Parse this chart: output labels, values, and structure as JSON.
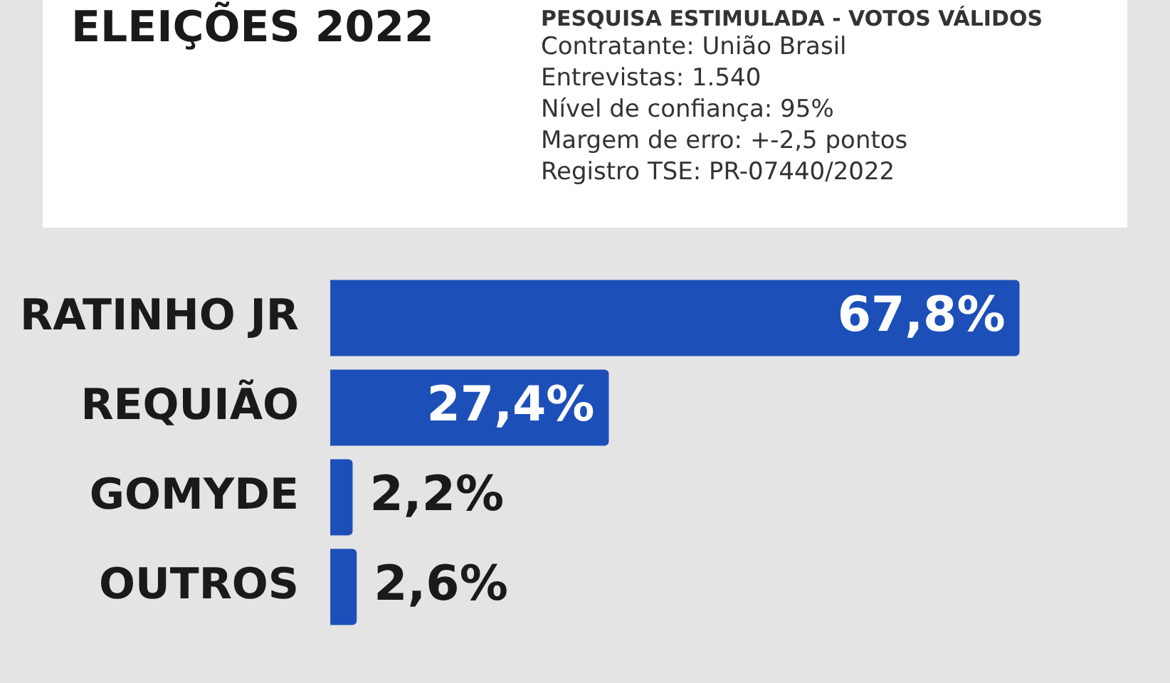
{
  "chart_data": {
    "type": "bar",
    "orientation": "horizontal",
    "title": "ELEIÇÕES 2022",
    "subtitle": "PESQUISA ESTIMULADA - VOTOS VÁLIDOS",
    "annotations": [
      "Contratante: União Brasil",
      "Entrevistas: 1.540",
      "Nível de confiança: 95%",
      "Margem de erro: +-2,5 pontos",
      "Registro TSE: PR-07440/2022"
    ],
    "categories": [
      "RATINHO JR",
      "REQUIÃO",
      "GOMYDE",
      "OUTROS"
    ],
    "values": [
      67.8,
      27.4,
      2.2,
      2.6
    ],
    "value_labels": [
      "67,8%",
      "27,4%",
      "2,2%",
      "2,6%"
    ],
    "color": "#1d4fb8"
  }
}
